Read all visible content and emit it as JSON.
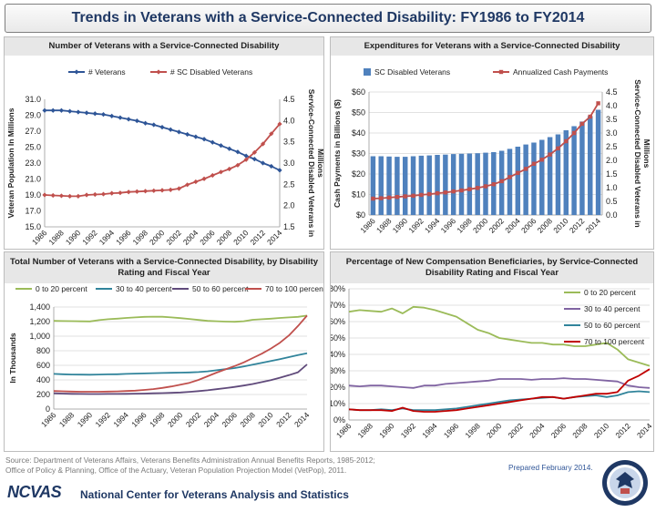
{
  "page": {
    "title": "Trends in Veterans with a Service-Connected Disability: FY1986 to FY2014",
    "source_lines": [
      "Source: Department of Veterans Affairs, Veterans Benefits Administration Annual Benefits Reports, 1985-2012;",
      "Office of Policy & Planning, Office of the Actuary, Veteran Population Projection Model (VetPop), 2011."
    ],
    "prepared": "Prepared February 2014.",
    "footer": {
      "logo_text": "NCVAS",
      "org_name": "National Center for Veterans Analysis and Statistics"
    }
  },
  "chart_data": [
    {
      "type": "line",
      "title": "Number of Veterans with a  Service-Connected Disability",
      "x": [
        "1986",
        "1987",
        "1988",
        "1989",
        "1990",
        "1991",
        "1992",
        "1993",
        "1994",
        "1995",
        "1996",
        "1997",
        "1998",
        "1999",
        "2000",
        "2001",
        "2002",
        "2003",
        "2004",
        "2005",
        "2006",
        "2007",
        "2008",
        "2009",
        "2010",
        "2011",
        "2012",
        "2013",
        "2014"
      ],
      "x_tick_labels": [
        "1986",
        "1988",
        "1990",
        "1992",
        "1994",
        "1996",
        "1998",
        "2000",
        "2002",
        "2004",
        "2006",
        "2008",
        "2010",
        "2012",
        "2014"
      ],
      "ylabel": "Veteran Population In Millions",
      "ylim": [
        15.0,
        31.0
      ],
      "y_ticks": [
        "31.0",
        "29.0",
        "27.0",
        "25.0",
        "23.0",
        "21.0",
        "19.0",
        "17.0",
        "15.0"
      ],
      "y2label": "Service-Connected Disabled Veterans in Millions",
      "y2lim": [
        1.5,
        4.5
      ],
      "y2_ticks": [
        "4.5",
        "4.0",
        "3.5",
        "3.0",
        "2.5",
        "2.0",
        "1.5"
      ],
      "legend_position": "top",
      "series": [
        {
          "name": "# Veterans",
          "axis": "left",
          "color": "#2e5597",
          "marker": "diamond",
          "values": [
            29.6,
            29.6,
            29.6,
            29.5,
            29.4,
            29.3,
            29.2,
            29.1,
            28.9,
            28.7,
            28.5,
            28.3,
            28.0,
            27.8,
            27.5,
            27.2,
            26.9,
            26.6,
            26.3,
            26.0,
            25.6,
            25.2,
            24.8,
            24.4,
            23.9,
            23.5,
            23.0,
            22.6,
            22.1
          ]
        },
        {
          "name": "# SC Disabled Veterans",
          "axis": "right",
          "color": "#c0504d",
          "marker": "diamond",
          "values": [
            2.25,
            2.24,
            2.23,
            2.22,
            2.22,
            2.25,
            2.26,
            2.27,
            2.29,
            2.3,
            2.32,
            2.33,
            2.34,
            2.35,
            2.36,
            2.37,
            2.4,
            2.49,
            2.56,
            2.63,
            2.71,
            2.79,
            2.86,
            2.95,
            3.08,
            3.25,
            3.45,
            3.69,
            3.92
          ]
        }
      ]
    },
    {
      "type": "bar",
      "title": "Expenditures for Veterans with a Service-Connected Disability",
      "categories": [
        "1986",
        "1987",
        "1988",
        "1989",
        "1990",
        "1991",
        "1992",
        "1993",
        "1994",
        "1995",
        "1996",
        "1997",
        "1998",
        "1999",
        "2000",
        "2001",
        "2002",
        "2003",
        "2004",
        "2005",
        "2006",
        "2007",
        "2008",
        "2009",
        "2010",
        "2011",
        "2012",
        "2013",
        "2014"
      ],
      "x_tick_labels": [
        "1986",
        "1988",
        "1990",
        "1992",
        "1994",
        "1996",
        "1998",
        "2000",
        "2002",
        "2004",
        "2006",
        "2008",
        "2010",
        "2012",
        "2014"
      ],
      "ylabel": "Cash Payments in Billions ($)",
      "ylim": [
        0,
        60
      ],
      "y_ticks": [
        "$60",
        "$50",
        "$40",
        "$30",
        "$20",
        "$10",
        "$0"
      ],
      "y2label": "Service-Connected Disabled Veterans in Millions",
      "y2lim": [
        0.0,
        4.5
      ],
      "y2_ticks": [
        "4.5",
        "4.0",
        "3.5",
        "3.0",
        "2.5",
        "2.0",
        "1.5",
        "1.0",
        "0.5",
        "0.0"
      ],
      "legend_position": "top",
      "series": [
        {
          "name": "SC Disabled Veterans",
          "axis": "right",
          "kind": "bar",
          "color": "#4f81bd",
          "values": [
            2.15,
            2.15,
            2.14,
            2.13,
            2.13,
            2.15,
            2.17,
            2.18,
            2.2,
            2.21,
            2.23,
            2.24,
            2.25,
            2.26,
            2.28,
            2.3,
            2.35,
            2.42,
            2.5,
            2.58,
            2.65,
            2.75,
            2.85,
            2.95,
            3.1,
            3.25,
            3.42,
            3.62,
            3.85
          ]
        },
        {
          "name": "Annualized Cash Payments",
          "axis": "left",
          "kind": "line",
          "color": "#c0504d",
          "marker": "square",
          "values": [
            8.0,
            8.2,
            8.5,
            8.8,
            9.1,
            9.4,
            9.8,
            10.2,
            10.6,
            11.0,
            11.5,
            12.0,
            12.6,
            13.2,
            14.0,
            15.0,
            16.5,
            18.5,
            20.5,
            22.5,
            25.0,
            27.0,
            29.5,
            32.5,
            36.0,
            40.0,
            44.5,
            48.0,
            54.5
          ]
        }
      ]
    },
    {
      "type": "line",
      "title": "Total Number of Veterans with a  Service-Connected Disability, by Disability Rating and Fiscal Year",
      "x": [
        "1986",
        "1987",
        "1988",
        "1989",
        "1990",
        "1991",
        "1992",
        "1993",
        "1994",
        "1995",
        "1996",
        "1997",
        "1998",
        "1999",
        "2000",
        "2001",
        "2002",
        "2003",
        "2004",
        "2005",
        "2006",
        "2007",
        "2008",
        "2009",
        "2010",
        "2011",
        "2012",
        "2013",
        "2014"
      ],
      "x_tick_labels": [
        "1986",
        "1988",
        "1990",
        "1992",
        "1994",
        "1996",
        "1998",
        "2000",
        "2002",
        "2004",
        "2006",
        "2008",
        "2010",
        "2012",
        "2014"
      ],
      "ylabel": "In Thousands",
      "ylim": [
        0,
        1400
      ],
      "y_ticks": [
        "1,400",
        "1,200",
        "1,000",
        "800",
        "600",
        "400",
        "200",
        "0"
      ],
      "legend_position": "top",
      "series": [
        {
          "name": "0 to 20 percent",
          "color": "#9bbb59",
          "values": [
            1210,
            1208,
            1206,
            1204,
            1203,
            1220,
            1232,
            1240,
            1250,
            1258,
            1265,
            1268,
            1266,
            1258,
            1248,
            1236,
            1222,
            1210,
            1205,
            1200,
            1198,
            1205,
            1225,
            1232,
            1240,
            1250,
            1258,
            1265,
            1282
          ]
        },
        {
          "name": "30 to 40 percent",
          "color": "#31849b",
          "values": [
            482,
            478,
            474,
            472,
            471,
            474,
            476,
            478,
            482,
            486,
            489,
            492,
            495,
            498,
            500,
            503,
            507,
            518,
            532,
            548,
            562,
            585,
            610,
            635,
            660,
            685,
            712,
            740,
            765
          ]
        },
        {
          "name": "50 to 60 percent",
          "color": "#604a7b",
          "values": [
            216,
            212,
            209,
            207,
            206,
            206,
            207,
            208,
            209,
            211,
            213,
            216,
            219,
            223,
            228,
            236,
            246,
            258,
            272,
            288,
            304,
            322,
            344,
            370,
            398,
            430,
            465,
            505,
            612
          ]
        },
        {
          "name": "70 to 100 percent",
          "color": "#c0504d",
          "values": [
            248,
            244,
            240,
            238,
            237,
            238,
            240,
            243,
            247,
            253,
            262,
            274,
            290,
            310,
            335,
            360,
            400,
            450,
            500,
            545,
            590,
            640,
            700,
            760,
            830,
            910,
            1010,
            1140,
            1282
          ]
        }
      ]
    },
    {
      "type": "line",
      "title": "Percentage of New Compensation Beneficiaries, by Service-Connected Disability Rating and Fiscal Year",
      "x": [
        "1986",
        "1987",
        "1988",
        "1989",
        "1990",
        "1991",
        "1992",
        "1993",
        "1994",
        "1995",
        "1996",
        "1997",
        "1998",
        "1999",
        "2000",
        "2001",
        "2002",
        "2003",
        "2004",
        "2005",
        "2006",
        "2007",
        "2008",
        "2009",
        "2010",
        "2011",
        "2012",
        "2013",
        "2014"
      ],
      "x_tick_labels": [
        "1986",
        "1988",
        "1990",
        "1992",
        "1994",
        "1996",
        "1998",
        "2000",
        "2002",
        "2004",
        "2006",
        "2008",
        "2010",
        "2012",
        "2014"
      ],
      "ylim": [
        0,
        80
      ],
      "y_ticks": [
        "80%",
        "70%",
        "60%",
        "50%",
        "40%",
        "30%",
        "20%",
        "10%",
        "0%"
      ],
      "legend_position": "right",
      "series": [
        {
          "name": "0 to 20 percent",
          "color": "#9bbb59",
          "values": [
            66,
            67,
            66.5,
            66,
            68,
            65,
            69,
            68.5,
            67,
            65,
            63,
            59,
            55,
            53,
            50,
            49,
            48,
            47,
            47,
            46,
            46,
            45,
            45,
            46,
            47,
            43,
            37,
            35,
            33
          ]
        },
        {
          "name": "30 to 40 percent",
          "color": "#8064a2",
          "values": [
            21,
            20.5,
            21,
            21,
            20.5,
            20,
            19.5,
            21,
            21,
            22,
            22.5,
            23,
            23.5,
            24,
            25,
            25,
            25,
            24.5,
            25,
            25,
            25.5,
            25,
            25,
            24.5,
            24,
            23.5,
            21,
            20,
            19.5
          ]
        },
        {
          "name": "50 to 60 percent",
          "color": "#31849b",
          "values": [
            6.5,
            6,
            6,
            6.5,
            6,
            7,
            6,
            6,
            6,
            6.5,
            7,
            8,
            9,
            10,
            11,
            12,
            12.5,
            13,
            13.5,
            14,
            13,
            14,
            14.5,
            15,
            14,
            15,
            17,
            17.5,
            17
          ]
        },
        {
          "name": "70 to 100 percent",
          "color": "#c00000",
          "values": [
            6.5,
            6,
            6,
            6,
            5.5,
            7.5,
            5.5,
            5,
            5,
            5.5,
            6,
            7,
            8,
            9,
            10,
            11,
            12,
            13,
            14,
            14,
            13,
            14,
            15,
            16,
            16,
            17,
            24,
            27,
            31
          ]
        }
      ]
    }
  ]
}
